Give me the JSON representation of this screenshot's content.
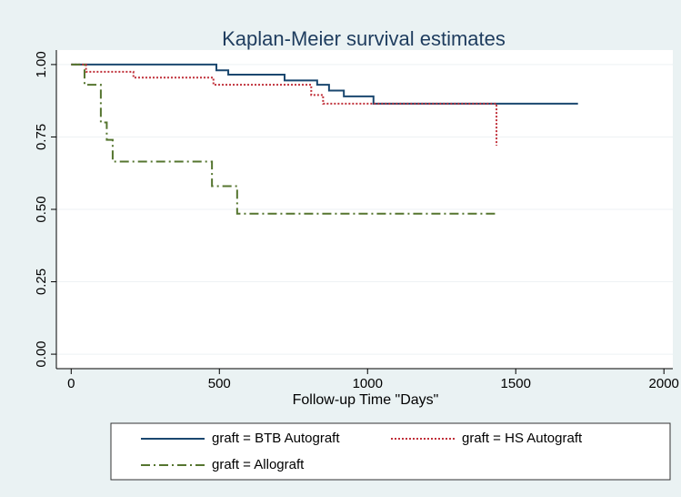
{
  "chart_data": {
    "type": "line",
    "step": true,
    "title": "Kaplan-Meier survival estimates",
    "xlabel": "Follow-up Time \"Days\"",
    "xlim": [
      -50,
      2030
    ],
    "ylim": [
      -0.05,
      1.05
    ],
    "xticks": [
      0,
      500,
      1000,
      1500,
      2000
    ],
    "yticks": [
      {
        "value": 0,
        "label": "0.00"
      },
      {
        "value": 0.25,
        "label": "0.25"
      },
      {
        "value": 0.5,
        "label": "0.50"
      },
      {
        "value": 0.75,
        "label": "0.75"
      },
      {
        "value": 1,
        "label": "1.00"
      }
    ],
    "grid": true,
    "legend": "bottom",
    "series": [
      {
        "name": "graft = BTB Autograft",
        "color": "#1a476f",
        "linestyle": "solid",
        "x": [
          0,
          490,
          490,
          530,
          530,
          720,
          720,
          830,
          830,
          870,
          870,
          920,
          920,
          1020,
          1020,
          1710
        ],
        "values": [
          1,
          1,
          0.98,
          0.98,
          0.965,
          0.965,
          0.945,
          0.945,
          0.93,
          0.93,
          0.91,
          0.91,
          0.89,
          0.89,
          0.865,
          0.865
        ]
      },
      {
        "name": "graft = HS Autograft",
        "color": "#c0303a",
        "linestyle": "dotted",
        "x": [
          0,
          50,
          50,
          210,
          210,
          480,
          480,
          810,
          810,
          850,
          850,
          1435,
          1435
        ],
        "values": [
          1,
          1,
          0.975,
          0.975,
          0.955,
          0.955,
          0.93,
          0.93,
          0.895,
          0.895,
          0.865,
          0.865,
          0.72
        ]
      },
      {
        "name": "graft = Allograft",
        "color": "#55752f",
        "linestyle": "dashdot",
        "x": [
          0,
          45,
          45,
          100,
          100,
          120,
          120,
          140,
          140,
          475,
          475,
          560,
          560,
          1430
        ],
        "values": [
          1,
          1,
          0.93,
          0.93,
          0.8,
          0.8,
          0.74,
          0.74,
          0.665,
          0.665,
          0.58,
          0.58,
          0.485,
          0.485
        ]
      }
    ]
  }
}
